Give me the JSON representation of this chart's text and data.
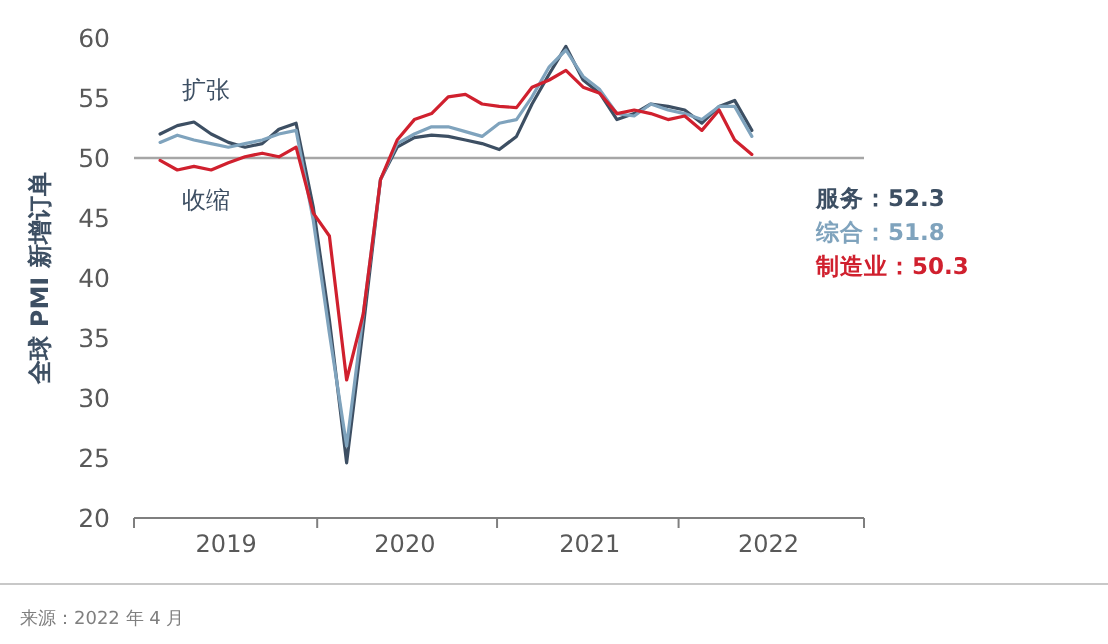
{
  "chart_data": {
    "type": "line",
    "ylabel": "全球 PMI 新增订单",
    "x": [
      "2019-05",
      "2019-06",
      "2019-07",
      "2019-08",
      "2019-09",
      "2019-10",
      "2019-11",
      "2019-12",
      "2020-01",
      "2020-02",
      "2020-03",
      "2020-04",
      "2020-05",
      "2020-06",
      "2020-07",
      "2020-08",
      "2020-09",
      "2020-10",
      "2020-11",
      "2020-12",
      "2021-01",
      "2021-02",
      "2021-03",
      "2021-04",
      "2021-05",
      "2021-06",
      "2021-07",
      "2021-08",
      "2021-09",
      "2021-10",
      "2021-11",
      "2021-12",
      "2022-01",
      "2022-02",
      "2022-03",
      "2022-04"
    ],
    "series": [
      {
        "name": "服务：52.3",
        "color": "#3d4f63",
        "values": [
          52.0,
          52.7,
          53.0,
          52.0,
          51.3,
          50.9,
          51.2,
          52.4,
          52.9,
          45.9,
          36.5,
          24.6,
          35.9,
          48.2,
          50.9,
          51.7,
          51.9,
          51.8,
          51.5,
          51.2,
          50.7,
          51.8,
          54.5,
          57.0,
          59.3,
          56.5,
          55.4,
          53.2,
          53.7,
          54.5,
          54.3,
          54.0,
          52.9,
          54.3,
          54.8,
          52.3
        ]
      },
      {
        "name": "综合：51.8",
        "color": "#7fa3bd",
        "values": [
          51.3,
          51.9,
          51.5,
          51.2,
          50.9,
          51.2,
          51.5,
          52.0,
          52.3,
          44.8,
          35.4,
          26.0,
          37.0,
          48.2,
          51.2,
          52.0,
          52.6,
          52.6,
          52.2,
          51.8,
          52.9,
          53.2,
          55.1,
          57.6,
          59.0,
          56.8,
          55.7,
          53.7,
          53.5,
          54.5,
          54.0,
          53.7,
          53.2,
          54.3,
          54.3,
          51.8
        ]
      },
      {
        "name": "制造业：50.3",
        "color": "#d0202e",
        "values": [
          49.8,
          49.0,
          49.3,
          49.0,
          49.6,
          50.1,
          50.4,
          50.1,
          50.9,
          45.4,
          43.5,
          31.5,
          37.0,
          48.2,
          51.5,
          53.2,
          53.7,
          55.1,
          55.3,
          54.5,
          54.3,
          54.2,
          55.9,
          56.5,
          57.3,
          55.9,
          55.4,
          53.7,
          54.0,
          53.7,
          53.2,
          53.5,
          52.3,
          54.0,
          51.5,
          50.3
        ]
      }
    ],
    "xlim": [
      "2019-03-15",
      "2022-10-20"
    ],
    "xticks": [
      {
        "value": "2019-03-15",
        "label": null
      },
      {
        "value": "2019-08-28",
        "label": "2019"
      },
      {
        "value": "2020-02-08",
        "label": null
      },
      {
        "value": "2020-07-15",
        "label": "2020"
      },
      {
        "value": "2020-12-28",
        "label": null
      },
      {
        "value": "2021-06-13",
        "label": "2021"
      },
      {
        "value": "2021-11-20",
        "label": null
      },
      {
        "value": "2022-05-01",
        "label": "2022"
      },
      {
        "value": "2022-10-20",
        "label": null
      }
    ],
    "ylim": [
      20,
      60
    ],
    "yticks": [
      20,
      25,
      30,
      35,
      40,
      45,
      50,
      55,
      60
    ],
    "ref_lines": [
      {
        "axis": "y",
        "value": 50,
        "color": "#a6a6a6"
      }
    ],
    "annotations": [
      "扩张",
      "收缩",
      "来源：2022 年 4 月"
    ],
    "legend": "right",
    "grid": false
  }
}
